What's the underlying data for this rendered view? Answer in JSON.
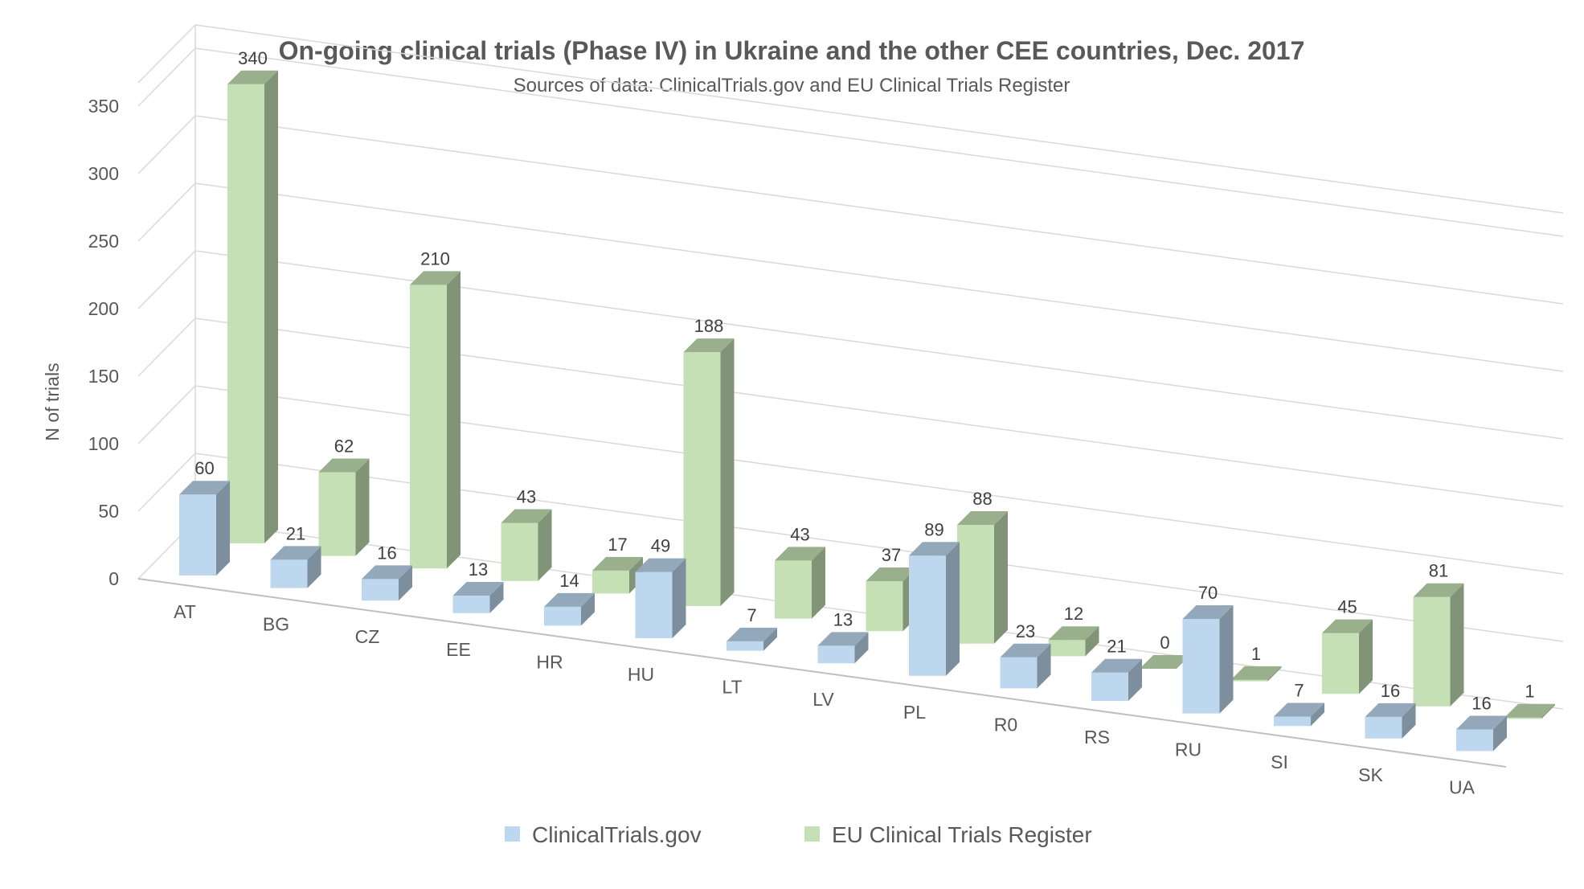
{
  "chart_data": {
    "type": "bar",
    "title": "On-going clinical trials (Phase IV) in Ukraine and the other CEE countries, Dec. 2017",
    "subtitle": "Sources of data: ClinicalTrials.gov and  EU Clinical Trials Register",
    "ylabel": "N of trials",
    "xlabel": "",
    "ylim": [
      0,
      350
    ],
    "yticks": [
      "0",
      "50",
      "100",
      "150",
      "200",
      "250",
      "300",
      "350"
    ],
    "grid": true,
    "legend_position": "bottom",
    "three_d": true,
    "categories": [
      "AT",
      "BG",
      "CZ",
      "EE",
      "HR",
      "HU",
      "LT",
      "LV",
      "PL",
      "R0",
      "RS",
      "RU",
      "SI",
      "SK",
      "UA"
    ],
    "series": [
      {
        "name": "ClinicalTrials.gov",
        "color": "#bdd7ee",
        "values": [
          60,
          21,
          16,
          13,
          14,
          49,
          7,
          13,
          89,
          23,
          21,
          70,
          7,
          16,
          16
        ]
      },
      {
        "name": "EU Clinical Trials Register",
        "color": "#c5e0b4",
        "values": [
          340,
          62,
          210,
          43,
          17,
          188,
          43,
          37,
          88,
          12,
          0,
          1,
          45,
          81,
          1
        ]
      }
    ],
    "highlight": {
      "category": "UA",
      "label_color": "#ff0000"
    }
  }
}
